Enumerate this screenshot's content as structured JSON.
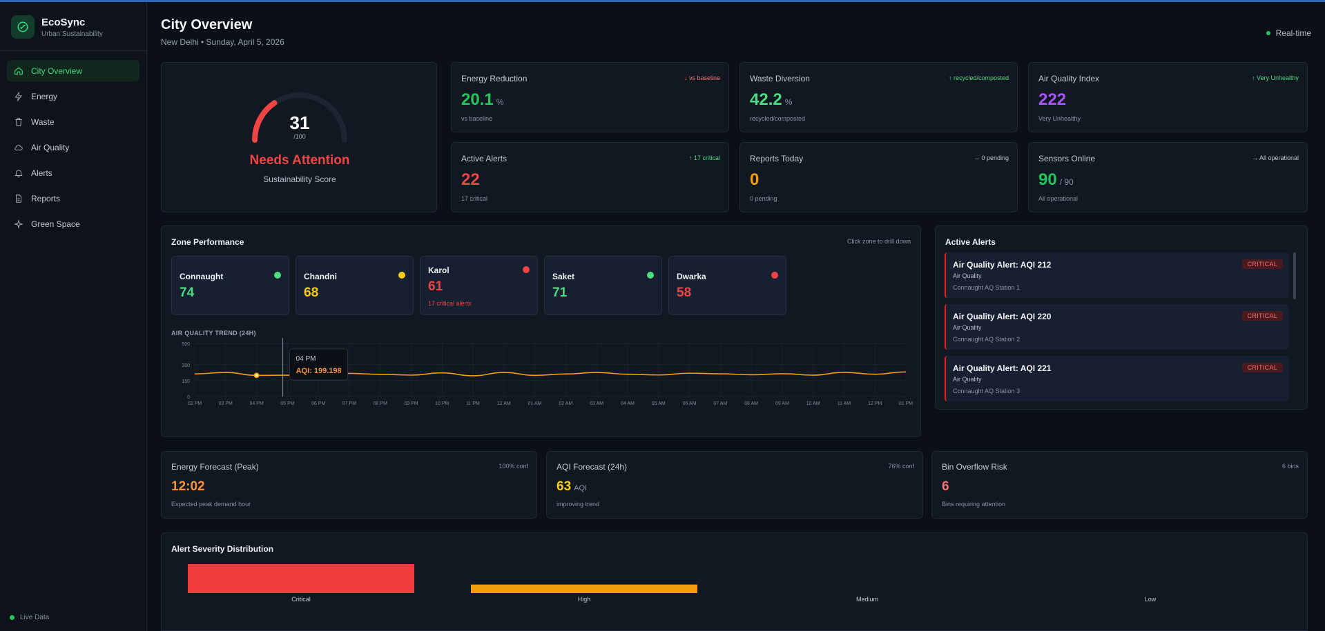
{
  "app": {
    "name": "EcoSync",
    "tagline": "Urban Sustainability"
  },
  "nav": [
    {
      "label": "City Overview",
      "icon": "home-icon",
      "active": true
    },
    {
      "label": "Energy",
      "icon": "bolt-icon"
    },
    {
      "label": "Waste",
      "icon": "trash-icon"
    },
    {
      "label": "Air Quality",
      "icon": "cloud-icon"
    },
    {
      "label": "Alerts",
      "icon": "bell-icon"
    },
    {
      "label": "Reports",
      "icon": "document-icon"
    },
    {
      "label": "Green Space",
      "icon": "sparkle-icon"
    }
  ],
  "live_label": "Live Data",
  "header": {
    "title": "City Overview",
    "subtitle": "New Delhi • Sunday, April 5, 2026",
    "realtime": "Real-time"
  },
  "score": {
    "value": "31",
    "max": "/100",
    "fraction": 0.31,
    "status": "Needs Attention",
    "label": "Sustainability Score"
  },
  "kpis": [
    {
      "title": "Energy Reduction",
      "trend": "↓ vs baseline",
      "value": "20.1",
      "unit": "%",
      "sub": "vs baseline",
      "value_color": "#22c55e",
      "trend_color": "#f87171"
    },
    {
      "title": "Waste Diversion",
      "trend": "↑ recycled/composted",
      "value": "42.2",
      "unit": "%",
      "sub": "recycled/composted",
      "value_color": "#4ade80",
      "trend_color": "#4ade80"
    },
    {
      "title": "Air Quality Index",
      "trend": "↑ Very Unhealthy",
      "value": "222",
      "unit": "",
      "sub": "Very Unhealthy",
      "value_color": "#a855f7",
      "trend_color": "#4ade80"
    },
    {
      "title": "Active Alerts",
      "trend": "↑ 17 critical",
      "value": "22",
      "unit": "",
      "sub": "17 critical",
      "value_color": "#ef4444",
      "trend_color": "#4ade80"
    },
    {
      "title": "Reports Today",
      "trend": "→ 0 pending",
      "value": "0",
      "unit": "",
      "sub": "0 pending",
      "value_color": "#f59e0b",
      "trend_color": "#c5cad4"
    },
    {
      "title": "Sensors Online",
      "trend": "→ All operational",
      "value": "90",
      "unit": "/ 90",
      "sub": "All operational",
      "value_color": "#22c55e",
      "trend_color": "#c5cad4"
    }
  ],
  "zones": {
    "title": "Zone Performance",
    "hint": "Click zone to drill down",
    "items": [
      {
        "name": "Connaught",
        "score": "74",
        "note": "",
        "color": "#4ade80"
      },
      {
        "name": "Chandni",
        "score": "68",
        "note": "",
        "color": "#facc15"
      },
      {
        "name": "Karol",
        "score": "61",
        "note": "17 critical alerts",
        "color": "#ef4444"
      },
      {
        "name": "Saket",
        "score": "71",
        "note": "",
        "color": "#4ade80"
      },
      {
        "name": "Dwarka",
        "score": "58",
        "note": "",
        "color": "#ef4444"
      }
    ]
  },
  "trend_label": "AIR QUALITY TREND (24H)",
  "tooltip": {
    "time": "04 PM",
    "value": "AQI: 199.198"
  },
  "chart_data": {
    "type": "line",
    "x": [
      "02 PM",
      "03 PM",
      "04 PM",
      "05 PM",
      "06 PM",
      "07 PM",
      "08 PM",
      "09 PM",
      "10 PM",
      "11 PM",
      "12 AM",
      "01 AM",
      "02 AM",
      "03 AM",
      "04 AM",
      "05 AM",
      "06 AM",
      "07 AM",
      "08 AM",
      "09 AM",
      "10 AM",
      "11 AM",
      "12 PM",
      "01 PM"
    ],
    "series": [
      {
        "values": [
          213,
          227,
          199,
          201,
          203,
          218,
          209,
          202,
          223,
          195,
          227,
          199,
          212,
          227,
          210,
          203,
          220,
          214,
          205,
          215,
          201,
          228,
          210,
          232
        ]
      }
    ],
    "yticks": [
      0,
      150,
      300,
      500
    ],
    "ylim": [
      0,
      500
    ],
    "color": "#f59e0b"
  },
  "alerts": {
    "title": "Active Alerts",
    "items": [
      {
        "title": "Air Quality Alert: AQI 212",
        "category": "Air Quality",
        "location": "Connaught AQ Station 1",
        "severity": "CRITICAL"
      },
      {
        "title": "Air Quality Alert: AQI 220",
        "category": "Air Quality",
        "location": "Connaught AQ Station 2",
        "severity": "CRITICAL"
      },
      {
        "title": "Air Quality Alert: AQI 221",
        "category": "Air Quality",
        "location": "Connaught AQ Station 3",
        "severity": "CRITICAL"
      }
    ]
  },
  "forecasts": [
    {
      "title": "Energy Forecast (Peak)",
      "hint": "100% conf",
      "value": "12:02",
      "unit": "",
      "sub": "Expected peak demand hour",
      "color": "#fb923c"
    },
    {
      "title": "AQI Forecast (24h)",
      "hint": "76% conf",
      "value": "63",
      "unit": "AQI",
      "sub": "improving trend",
      "color": "#facc15"
    },
    {
      "title": "Bin Overflow Risk",
      "hint": "6 bins",
      "value": "6",
      "unit": "",
      "sub": "Bins requiring attention",
      "color": "#f87171"
    }
  ],
  "severity": {
    "title": "Alert Severity Distribution",
    "chart_data": {
      "type": "bar",
      "categories": [
        "Critical",
        "High",
        "Medium",
        "Low"
      ],
      "values": [
        17,
        5,
        0,
        0
      ],
      "colors": [
        "#f03c3c",
        "#f59e0b",
        "#eab308",
        "#3b82f6"
      ]
    }
  }
}
